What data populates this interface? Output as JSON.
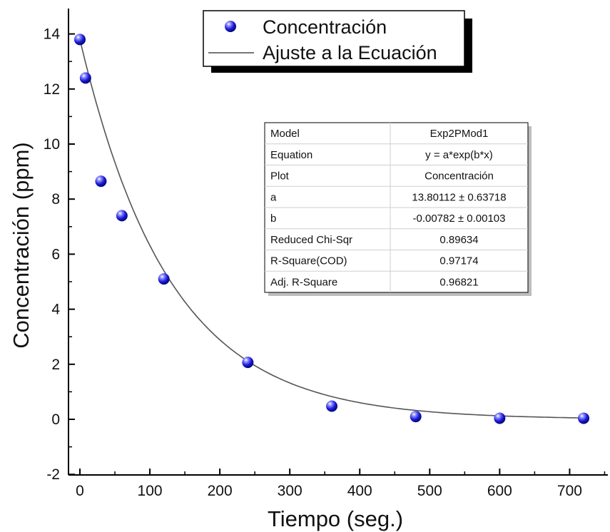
{
  "chart_data": {
    "type": "scatter",
    "title": "",
    "xlabel": "Tiempo (seg.)",
    "ylabel": "Concentración (ppm)",
    "xlim": [
      -15,
      760
    ],
    "ylim": [
      -2,
      15
    ],
    "x_ticks": [
      0,
      100,
      200,
      300,
      400,
      500,
      600,
      700
    ],
    "y_ticks": [
      -2,
      0,
      2,
      4,
      6,
      8,
      10,
      12,
      14
    ],
    "grid": false,
    "legend_position": "top-center",
    "series": [
      {
        "name": "Concentración",
        "kind": "scatter",
        "color": "#1f1fd6",
        "x": [
          0,
          8,
          30,
          60,
          120,
          240,
          360,
          480,
          600,
          720
        ],
        "y": [
          13.8,
          12.4,
          8.65,
          7.4,
          5.1,
          2.07,
          0.48,
          0.1,
          0.04,
          0.04
        ]
      },
      {
        "name": "Ajuste a la Ecuación",
        "kind": "fit",
        "equation": "y = a*exp(b*x)",
        "a": 13.80112,
        "b": -0.00782,
        "color": "#555555"
      }
    ],
    "fit_table": [
      [
        "Model",
        "Exp2PMod1"
      ],
      [
        "Equation",
        "y = a*exp(b*x)"
      ],
      [
        "Plot",
        "Concentración"
      ],
      [
        "a",
        "13.80112 ± 0.63718"
      ],
      [
        "b",
        "-0.00782 ± 0.00103"
      ],
      [
        "Reduced Chi-Sqr",
        "0.89634"
      ],
      [
        "R-Square(COD)",
        "0.97174"
      ],
      [
        "Adj. R-Square",
        "0.96821"
      ]
    ]
  }
}
